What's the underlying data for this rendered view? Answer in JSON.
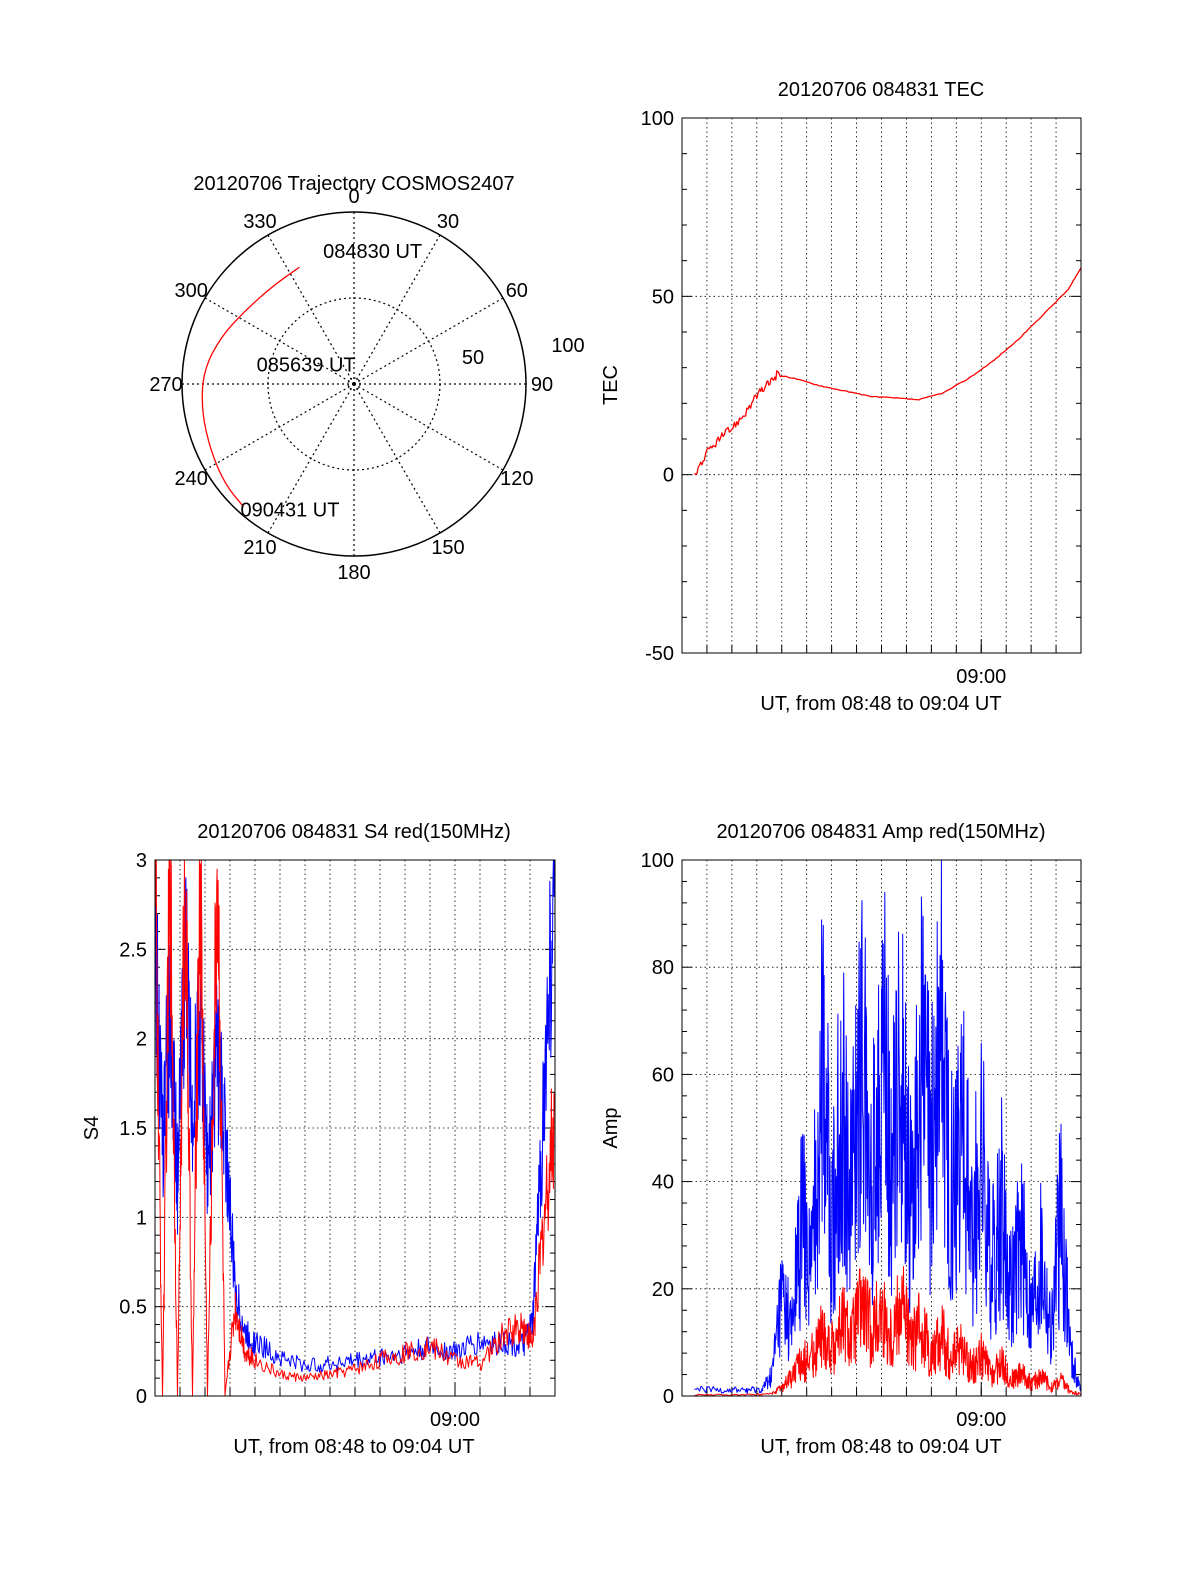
{
  "chart_data": [
    {
      "type": "polar",
      "title": "20120706 Trajectory COSMOS2407",
      "azimuth_labels": [
        "0",
        "30",
        "60",
        "90",
        "120",
        "150",
        "180",
        "210",
        "240",
        "270",
        "300",
        "330"
      ],
      "radial_labels": [
        "50",
        "100"
      ],
      "radial_range": [
        0,
        100
      ],
      "grid": true,
      "trajectory": {
        "color": "#ff0000",
        "points": [
          {
            "az": 335,
            "r": 75
          },
          {
            "az": 320,
            "r": 74
          },
          {
            "az": 305,
            "r": 76
          },
          {
            "az": 290,
            "r": 82
          },
          {
            "az": 275,
            "r": 88
          },
          {
            "az": 260,
            "r": 90
          },
          {
            "az": 245,
            "r": 92
          },
          {
            "az": 232,
            "r": 95
          },
          {
            "az": 222,
            "r": 96
          }
        ]
      },
      "annotations": [
        {
          "text": "084830 UT",
          "az": 8,
          "r": 78
        },
        {
          "text": "085639 UT",
          "az": 292,
          "r": 30
        },
        {
          "text": "090431 UT",
          "az": 207,
          "r": 82
        }
      ]
    },
    {
      "type": "line",
      "title": "20120706 084831 TEC",
      "ylabel": "TEC",
      "xlabel": "UT, from 08:48 to 09:04 UT",
      "xlim": [
        0,
        16
      ],
      "ylim": [
        -50,
        100
      ],
      "yticks": [
        "-50",
        "0",
        "50",
        "100"
      ],
      "xticks": [
        {
          "value": 12,
          "label": "09:00"
        }
      ],
      "grid": true,
      "series": [
        {
          "color": "#ff0000",
          "x": [
            0.5,
            1.0,
            1.5,
            2.0,
            2.5,
            3.0,
            3.4,
            3.8,
            4.5,
            5.5,
            6.5,
            7.5,
            8.5,
            9.5,
            10.5,
            11.5,
            12.5,
            13.5,
            14.5,
            15.5,
            16.0
          ],
          "y": [
            0,
            6,
            10,
            13,
            17,
            22,
            25,
            28,
            27,
            25,
            23.5,
            22,
            21.5,
            21,
            23,
            27,
            32,
            38,
            45,
            52,
            58
          ]
        }
      ]
    },
    {
      "type": "line",
      "title": "20120706 084831 S4 red(150MHz)",
      "ylabel": "S4",
      "xlabel": "UT, from 08:48 to 09:04 UT",
      "xlim": [
        0,
        16
      ],
      "ylim": [
        0,
        3
      ],
      "yticks": [
        "0",
        "0.5",
        "1",
        "1.5",
        "2",
        "2.5",
        "3"
      ],
      "xticks": [
        {
          "value": 12,
          "label": "09:00"
        }
      ],
      "grid": true,
      "series": [
        {
          "color": "#0000ff",
          "x": [
            0,
            0.3,
            0.6,
            0.9,
            1.2,
            1.5,
            1.8,
            2.1,
            2.5,
            2.8,
            3.2,
            3.6,
            4.0,
            5.0,
            6.0,
            7.0,
            8.0,
            9.0,
            10.0,
            11.0,
            12.0,
            13.0,
            14.0,
            14.7,
            15.1,
            15.5,
            16.0
          ],
          "y": [
            2.6,
            1.4,
            2.2,
            1.2,
            2.5,
            1.6,
            2.1,
            1.3,
            1.9,
            1.5,
            0.6,
            0.35,
            0.3,
            0.22,
            0.17,
            0.18,
            0.2,
            0.22,
            0.24,
            0.27,
            0.25,
            0.3,
            0.3,
            0.28,
            0.4,
            1.5,
            3.0
          ]
        },
        {
          "color": "#ff0000",
          "x": [
            0,
            0.3,
            0.6,
            0.9,
            1.2,
            1.5,
            1.8,
            2.1,
            2.5,
            2.8,
            3.2,
            3.6,
            4.0,
            5.0,
            6.0,
            7.0,
            8.0,
            9.0,
            10.0,
            11.0,
            12.0,
            13.0,
            14.0,
            14.7,
            15.1,
            15.5,
            16.0
          ],
          "y": [
            3.0,
            0.0,
            3.0,
            0.0,
            3.0,
            0.0,
            3.0,
            0.0,
            3.0,
            0.0,
            0.5,
            0.25,
            0.2,
            0.12,
            0.1,
            0.12,
            0.15,
            0.2,
            0.24,
            0.28,
            0.2,
            0.18,
            0.35,
            0.4,
            0.3,
            0.9,
            1.6
          ]
        }
      ]
    },
    {
      "type": "line",
      "title": "20120706 084831 Amp red(150MHz)",
      "ylabel": "Amp",
      "xlabel": "UT, from 08:48 to 09:04 UT",
      "xlim": [
        0,
        16
      ],
      "ylim": [
        0,
        100
      ],
      "yticks": [
        "0",
        "20",
        "40",
        "60",
        "80",
        "100"
      ],
      "xticks": [
        {
          "value": 12,
          "label": "09:00"
        }
      ],
      "grid": true,
      "series": [
        {
          "color": "#0000ff",
          "x": [
            0.5,
            1.5,
            2.5,
            3.2,
            3.6,
            4.0,
            4.4,
            4.8,
            5.2,
            5.6,
            6.0,
            6.4,
            6.8,
            7.2,
            7.6,
            8.0,
            8.4,
            8.8,
            9.2,
            9.6,
            10.0,
            10.4,
            10.8,
            11.2,
            11.6,
            12.0,
            12.4,
            12.8,
            13.2,
            13.6,
            14.0,
            14.4,
            14.8,
            15.2,
            15.6,
            16.0
          ],
          "y": [
            1.5,
            1.5,
            1.5,
            1.5,
            5,
            25,
            15,
            45,
            30,
            90,
            40,
            75,
            50,
            87,
            45,
            96,
            55,
            80,
            45,
            78,
            60,
            85,
            50,
            72,
            40,
            60,
            30,
            48,
            25,
            40,
            20,
            35,
            15,
            46,
            10,
            1
          ]
        },
        {
          "color": "#ff0000",
          "x": [
            0.5,
            2.5,
            3.6,
            4.0,
            4.4,
            4.8,
            5.2,
            5.6,
            6.0,
            6.4,
            6.8,
            7.2,
            7.6,
            8.0,
            8.4,
            8.8,
            9.2,
            9.6,
            10.0,
            10.4,
            10.8,
            11.2,
            11.6,
            12.0,
            12.4,
            12.8,
            13.2,
            13.6,
            14.0,
            14.4,
            14.8,
            15.2,
            15.6,
            16.0
          ],
          "y": [
            0.3,
            0.3,
            0.5,
            2,
            5,
            8,
            10,
            15,
            12,
            18,
            14,
            22,
            16,
            20,
            14,
            24,
            12,
            18,
            10,
            15,
            9,
            12,
            7,
            10,
            5,
            8,
            4,
            6,
            3,
            5,
            2,
            4,
            1,
            0.5
          ]
        }
      ]
    }
  ]
}
